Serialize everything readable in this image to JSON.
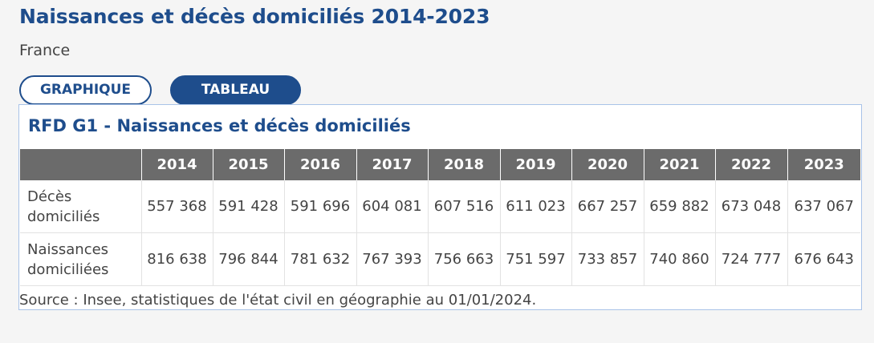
{
  "page": {
    "title": "Naissances et décès domiciliés 2014-2023",
    "subtitle": "France"
  },
  "tabs": [
    {
      "label": "GRAPHIQUE",
      "active": false
    },
    {
      "label": "TABLEAU",
      "active": true
    }
  ],
  "table": {
    "caption": "RFD G1 - Naissances et décès domiciliés",
    "corner_header": "",
    "columns": [
      "2014",
      "2015",
      "2016",
      "2017",
      "2018",
      "2019",
      "2020",
      "2021",
      "2022",
      "2023"
    ],
    "rows": [
      {
        "label": "Décès domiciliés",
        "values": [
          "557 368",
          "591 428",
          "591 696",
          "604 081",
          "607 516",
          "611 023",
          "667 257",
          "659 882",
          "673 048",
          "637 067"
        ]
      },
      {
        "label": "Naissances domiciliées",
        "values": [
          "816 638",
          "796 844",
          "781 632",
          "767 393",
          "756 663",
          "751 597",
          "733 857",
          "740 860",
          "724 777",
          "676 643"
        ]
      }
    ],
    "source": "Source : Insee, statistiques de l'état civil en géographie au 01/01/2024."
  },
  "colors": {
    "accent": "#1e4d8c",
    "header_bg": "#6b6b6b",
    "panel_border": "#a9c3e8",
    "page_bg": "#f5f5f5"
  }
}
